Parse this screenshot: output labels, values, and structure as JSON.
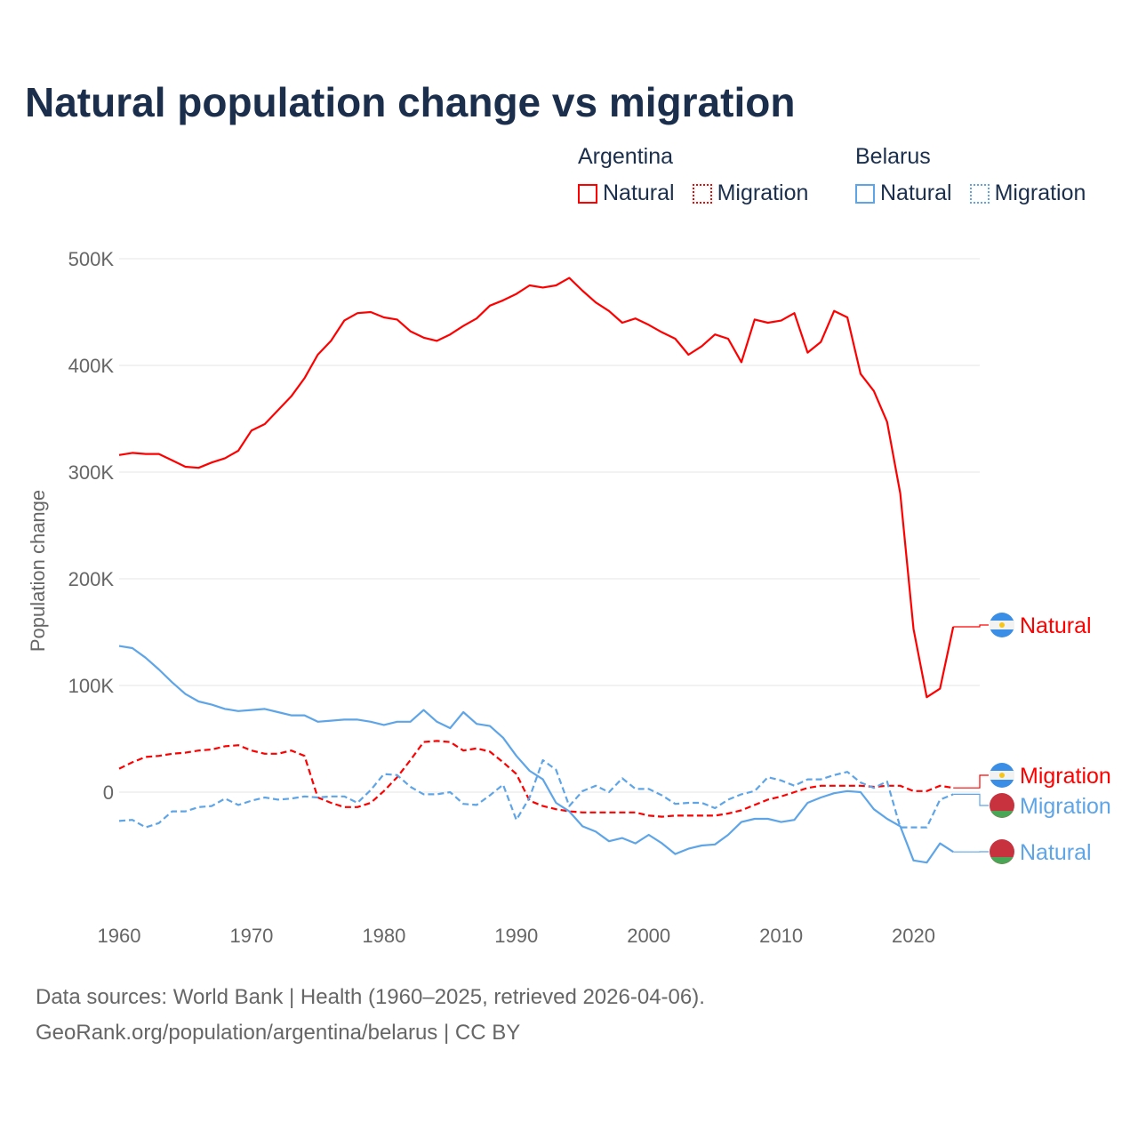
{
  "title": "Natural population change vs migration",
  "legend": {
    "groups": [
      {
        "name": "Argentina",
        "items": [
          "Natural",
          "Migration"
        ]
      },
      {
        "name": "Belarus",
        "items": [
          "Natural",
          "Migration"
        ]
      }
    ]
  },
  "footer": {
    "line1": "Data sources: World Bank | Health (1960–2025, retrieved 2026-04-06).",
    "line2": "GeoRank.org/population/argentina/belarus | CC BY"
  },
  "chart_data": {
    "type": "line",
    "title": "Natural population change vs migration",
    "ylabel": "Population change",
    "xlabel": "",
    "xlim": [
      1960,
      2025
    ],
    "ylim": [
      -100000,
      500000
    ],
    "yticks": [
      {
        "v": 0,
        "label": "0"
      },
      {
        "v": 100000,
        "label": "100K"
      },
      {
        "v": 200000,
        "label": "200K"
      },
      {
        "v": 300000,
        "label": "300K"
      },
      {
        "v": 400000,
        "label": "400K"
      },
      {
        "v": 500000,
        "label": "500K"
      }
    ],
    "xticks": [
      1960,
      1970,
      1980,
      1990,
      2000,
      2010,
      2020
    ],
    "x_start": 1960,
    "colors": {
      "Argentina": "#ff0000",
      "Belarus": "#5ea5e8"
    },
    "series": [
      {
        "name": "Argentina Natural",
        "country": "Argentina",
        "kind": "Natural",
        "dashed": false,
        "label": "Natural",
        "values_k": [
          316,
          318,
          317,
          317,
          311,
          305,
          304,
          309,
          313,
          320,
          339,
          345,
          358,
          371,
          388,
          410,
          423,
          442,
          449,
          450,
          445,
          443,
          432,
          426,
          423,
          429,
          437,
          444,
          456,
          461,
          467,
          475,
          473,
          475,
          482,
          470,
          459,
          451,
          440,
          444,
          438,
          431,
          425,
          410,
          418,
          429,
          425,
          403,
          443,
          440,
          442,
          449,
          412,
          422,
          451,
          445,
          392,
          376,
          347,
          280,
          153,
          89,
          97,
          155
        ]
      },
      {
        "name": "Argentina Migration",
        "country": "Argentina",
        "kind": "Migration",
        "dashed": true,
        "label": "Migration",
        "values_k": [
          22,
          28,
          33,
          34,
          36,
          37,
          39,
          40,
          43,
          44,
          39,
          36,
          36,
          39,
          34,
          -5,
          -10,
          -14,
          -14,
          -10,
          1,
          14,
          30,
          47,
          48,
          47,
          39,
          41,
          38,
          28,
          17,
          -8,
          -13,
          -16,
          -18,
          -19,
          -19,
          -19,
          -19,
          -19,
          -22,
          -23,
          -22,
          -22,
          -22,
          -22,
          -20,
          -17,
          -12,
          -7,
          -4,
          0,
          4,
          6,
          6,
          6,
          6,
          5,
          6,
          6,
          1,
          1,
          6,
          4
        ]
      },
      {
        "name": "Belarus Natural",
        "country": "Belarus",
        "kind": "Natural",
        "dashed": false,
        "label": "Natural",
        "values_k": [
          137,
          135,
          126,
          115,
          103,
          92,
          85,
          82,
          78,
          76,
          77,
          78,
          75,
          72,
          72,
          66,
          67,
          68,
          68,
          66,
          63,
          66,
          66,
          77,
          66,
          60,
          75,
          64,
          62,
          51,
          34,
          20,
          12,
          -10,
          -18,
          -32,
          -37,
          -46,
          -43,
          -48,
          -40,
          -48,
          -58,
          -53,
          -50,
          -49,
          -40,
          -28,
          -25,
          -25,
          -28,
          -26,
          -10,
          -5,
          -1,
          1,
          0,
          -16,
          -25,
          -32,
          -64,
          -66,
          -48,
          -56
        ]
      },
      {
        "name": "Belarus Migration",
        "country": "Belarus",
        "kind": "Migration",
        "dashed": true,
        "label": "Migration",
        "values_k": [
          -27,
          -26,
          -33,
          -29,
          -18,
          -18,
          -14,
          -13,
          -6,
          -12,
          -8,
          -5,
          -7,
          -6,
          -4,
          -5,
          -4,
          -4,
          -10,
          2,
          17,
          16,
          5,
          -2,
          -2,
          0,
          -11,
          -12,
          -3,
          7,
          -26,
          -5,
          30,
          21,
          -13,
          1,
          6,
          0,
          13,
          3,
          3,
          -3,
          -11,
          -10,
          -10,
          -15,
          -7,
          -2,
          1,
          14,
          11,
          6,
          12,
          12,
          16,
          19,
          9,
          4,
          10,
          -33,
          -33,
          -33,
          -7,
          -2
        ]
      }
    ]
  }
}
